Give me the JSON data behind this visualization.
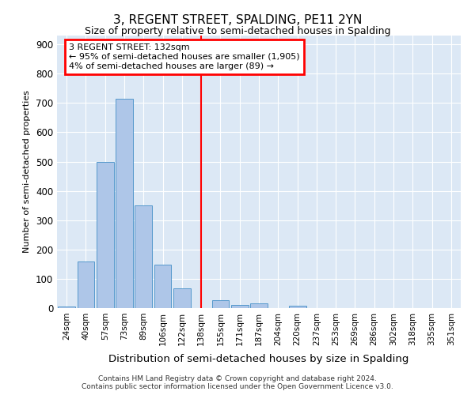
{
  "title": "3, REGENT STREET, SPALDING, PE11 2YN",
  "subtitle": "Size of property relative to semi-detached houses in Spalding",
  "xlabel": "Distribution of semi-detached houses by size in Spalding",
  "ylabel": "Number of semi-detached properties",
  "categories": [
    "24sqm",
    "40sqm",
    "57sqm",
    "73sqm",
    "89sqm",
    "106sqm",
    "122sqm",
    "138sqm",
    "155sqm",
    "171sqm",
    "187sqm",
    "204sqm",
    "220sqm",
    "237sqm",
    "253sqm",
    "269sqm",
    "286sqm",
    "302sqm",
    "318sqm",
    "335sqm",
    "351sqm"
  ],
  "bar_heights": [
    5,
    160,
    500,
    715,
    350,
    148,
    68,
    0,
    28,
    12,
    15,
    0,
    7,
    0,
    0,
    0,
    0,
    0,
    0,
    0,
    0
  ],
  "bar_color": "#aec6e8",
  "bar_edge_color": "#5599cc",
  "vline_x": 7,
  "vline_color": "red",
  "annotation_title": "3 REGENT STREET: 132sqm",
  "annotation_line1": "← 95% of semi-detached houses are smaller (1,905)",
  "annotation_line2": "4% of semi-detached houses are larger (89) →",
  "ylim": [
    0,
    930
  ],
  "yticks": [
    0,
    100,
    200,
    300,
    400,
    500,
    600,
    700,
    800,
    900
  ],
  "background_color": "#dce8f5",
  "grid_color": "#ffffff",
  "fig_bg": "#ffffff",
  "footer_line1": "Contains HM Land Registry data © Crown copyright and database right 2024.",
  "footer_line2": "Contains public sector information licensed under the Open Government Licence v3.0."
}
